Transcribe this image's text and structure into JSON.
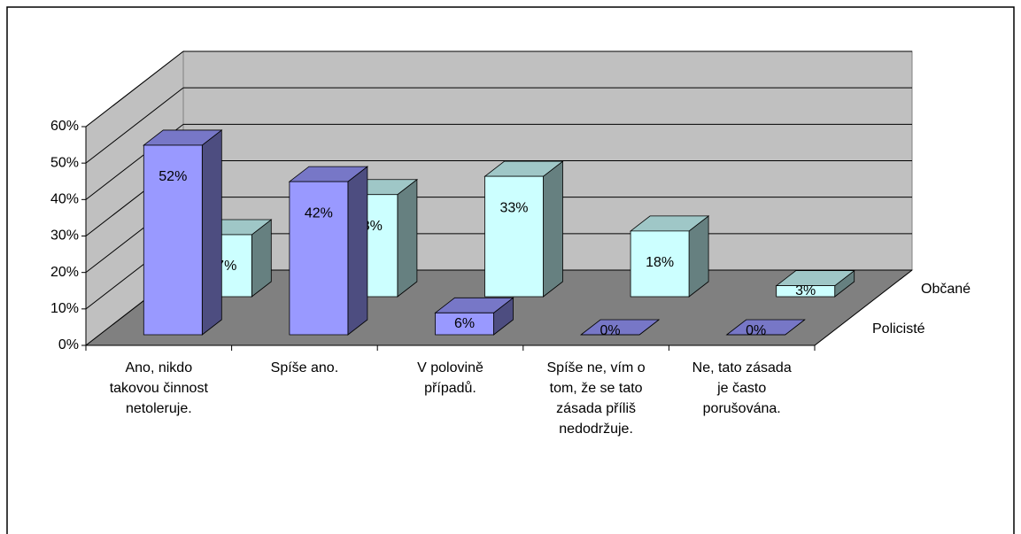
{
  "chart_data": {
    "type": "bar3d",
    "categories": [
      "Ano, nikdo takovou činnost netoleruje.",
      "Spíše ano.",
      "V polovině případů.",
      "Spíše ne, vím o tom, že se tato zásada příliš nedodržuje.",
      "Ne, tato zásada je často porušována."
    ],
    "series": [
      {
        "name": "Policisté",
        "color": "#9999ff",
        "values": [
          52,
          42,
          6,
          0,
          0
        ],
        "value_labels": [
          "52%",
          "42%",
          "6%",
          "0%",
          "0%"
        ]
      },
      {
        "name": "Občané",
        "color": "#ccffff",
        "values": [
          17,
          28,
          33,
          18,
          3
        ],
        "value_labels": [
          "17%",
          "28%",
          "33%",
          "18%",
          "3%"
        ]
      }
    ],
    "ylim": [
      0,
      60
    ],
    "yticks": [
      {
        "value": 0,
        "label": "0%"
      },
      {
        "value": 10,
        "label": "10%"
      },
      {
        "value": 20,
        "label": "20%"
      },
      {
        "value": 30,
        "label": "30%"
      },
      {
        "value": 40,
        "label": "40%"
      },
      {
        "value": 50,
        "label": "50%"
      },
      {
        "value": 60,
        "label": "60%"
      }
    ],
    "grid": true
  }
}
